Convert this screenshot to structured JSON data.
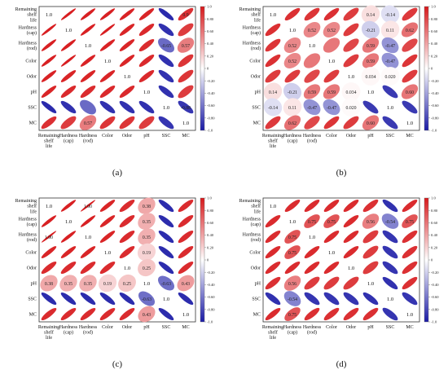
{
  "variables": [
    "Remaining shelf life",
    "Hardness (cap)",
    "Hardness (rod)",
    "Color",
    "Odor",
    "pH",
    "SSC",
    "MC"
  ],
  "row_labels": [
    [
      "Remaining",
      "shelf",
      "life"
    ],
    [
      "Hardness",
      "(cap)"
    ],
    [
      "Hardness",
      "(rod)"
    ],
    [
      "Color"
    ],
    [
      "Odor"
    ],
    [
      "pH"
    ],
    [
      "SSC"
    ],
    [
      "MC"
    ]
  ],
  "col_labels": [
    [
      "Remaining",
      "shelf",
      "life"
    ],
    [
      "Hardness",
      "(cap)"
    ],
    [
      "Hardness",
      "(rod)"
    ],
    [
      "Color"
    ],
    [
      "Odor"
    ],
    [
      "pH"
    ],
    [
      "SSC"
    ],
    [
      "MC"
    ]
  ],
  "colorbar_ticks": [
    "1.0",
    "0.80",
    "0.60",
    "0.40",
    "0.20",
    "0",
    "-0.20",
    "-0.40",
    "-0.60",
    "-0.80",
    "-1.0"
  ],
  "colors": {
    "positive": "#d7191c",
    "neutral": "#ffffff",
    "negative": "#1a1aa6",
    "frame": "#333333",
    "diag_text": "#111111"
  },
  "chart_data": [
    {
      "type": "heatmap",
      "panel_label": "(a)",
      "variables": [
        "Remaining shelf life",
        "Hardness (cap)",
        "Hardness (rod)",
        "Color",
        "Odor",
        "pH",
        "SSC",
        "MC"
      ],
      "matrix": [
        [
          1.0,
          0.98,
          0.97,
          0.97,
          0.96,
          0.95,
          -0.93,
          0.9
        ],
        [
          0.98,
          1.0,
          0.97,
          0.98,
          0.95,
          0.93,
          -0.9,
          0.85
        ],
        [
          0.97,
          0.97,
          1.0,
          0.96,
          0.95,
          0.92,
          -0.65,
          0.57
        ],
        [
          0.97,
          0.98,
          0.96,
          1.0,
          0.95,
          0.93,
          -0.9,
          0.88
        ],
        [
          0.96,
          0.95,
          0.95,
          0.95,
          1.0,
          0.93,
          -0.9,
          0.88
        ],
        [
          0.95,
          0.93,
          0.92,
          0.93,
          0.93,
          1.0,
          -0.9,
          0.85
        ],
        [
          -0.93,
          -0.9,
          -0.65,
          -0.9,
          -0.9,
          -0.9,
          1.0,
          -0.88
        ],
        [
          0.9,
          0.85,
          0.57,
          0.88,
          0.88,
          0.85,
          -0.88,
          1.0
        ]
      ],
      "value_labels": [
        [
          null,
          null,
          null,
          null,
          null,
          null,
          null,
          "0.9"
        ],
        [
          null,
          null,
          null,
          null,
          null,
          null,
          null,
          null
        ],
        [
          null,
          null,
          null,
          null,
          null,
          null,
          "-0.65",
          "0.57"
        ],
        [
          null,
          null,
          null,
          null,
          null,
          null,
          null,
          null
        ],
        [
          null,
          null,
          null,
          null,
          null,
          null,
          null,
          null
        ],
        [
          null,
          null,
          null,
          null,
          null,
          null,
          null,
          null
        ],
        [
          null,
          null,
          null,
          null,
          null,
          null,
          null,
          "-0.88"
        ],
        [
          null,
          null,
          "0.57",
          null,
          null,
          null,
          null,
          null
        ]
      ],
      "colorbar_range": [
        -1.0,
        1.0
      ]
    },
    {
      "type": "heatmap",
      "panel_label": "(b)",
      "variables": [
        "Remaining shelf life",
        "Hardness (cap)",
        "Hardness (rod)",
        "Color",
        "Odor",
        "pH",
        "SSC",
        "MC"
      ],
      "matrix": [
        [
          1.0,
          0.9,
          0.88,
          0.9,
          0.85,
          0.14,
          -0.14,
          0.86
        ],
        [
          0.9,
          1.0,
          0.52,
          0.52,
          0.85,
          -0.21,
          0.11,
          0.62
        ],
        [
          0.88,
          0.52,
          1.0,
          0.59,
          0.8,
          0.59,
          -0.47,
          0.8
        ],
        [
          0.9,
          0.52,
          0.59,
          1.0,
          0.85,
          0.59,
          -0.47,
          0.88
        ],
        [
          0.85,
          0.85,
          0.8,
          0.85,
          1.0,
          0.034,
          0.02,
          0.85
        ],
        [
          0.14,
          -0.21,
          0.59,
          0.59,
          0.034,
          1.0,
          -0.86,
          0.6
        ],
        [
          -0.14,
          0.11,
          -0.47,
          -0.47,
          0.02,
          -0.86,
          1.0,
          -0.86
        ],
        [
          0.86,
          0.62,
          0.8,
          0.88,
          0.85,
          0.6,
          -0.86,
          1.0
        ]
      ],
      "value_labels": [
        [
          null,
          null,
          null,
          null,
          null,
          "0.14",
          "-0.14",
          null
        ],
        [
          null,
          null,
          "0.52",
          "0.52",
          null,
          "-0.21",
          "0.11",
          "0.62"
        ],
        [
          null,
          "0.52",
          null,
          null,
          null,
          "0.59",
          "-0.47",
          null
        ],
        [
          null,
          "0.52",
          null,
          null,
          null,
          "0.59",
          "-0.47",
          null
        ],
        [
          null,
          null,
          null,
          null,
          null,
          "0.034",
          "0.020",
          null
        ],
        [
          "0.14",
          "-0.21",
          "0.59",
          "0.59",
          "0.034",
          null,
          null,
          "0.60"
        ],
        [
          "-0.14",
          "0.11",
          "-0.47",
          "-0.47",
          "0.020",
          null,
          null,
          null
        ],
        [
          null,
          "0.62",
          null,
          null,
          null,
          "0.60",
          null,
          null
        ]
      ],
      "colorbar_range": [
        -1.0,
        1.0
      ]
    },
    {
      "type": "heatmap",
      "panel_label": "(c)",
      "variables": [
        "Remaining shelf life",
        "Hardness (cap)",
        "Hardness (rod)",
        "Color",
        "Odor",
        "pH",
        "SSC",
        "MC"
      ],
      "matrix": [
        [
          1.0,
          0.97,
          1.0,
          0.95,
          0.92,
          0.38,
          -0.92,
          0.92
        ],
        [
          0.97,
          1.0,
          0.97,
          0.95,
          0.92,
          0.35,
          -0.92,
          0.92
        ],
        [
          1.0,
          0.97,
          1.0,
          0.95,
          0.92,
          0.35,
          -0.92,
          0.92
        ],
        [
          0.95,
          0.95,
          0.95,
          1.0,
          0.92,
          0.19,
          -0.92,
          0.92
        ],
        [
          0.92,
          0.92,
          0.92,
          0.92,
          1.0,
          0.25,
          -0.92,
          0.92
        ],
        [
          0.38,
          0.35,
          0.35,
          0.19,
          0.25,
          1.0,
          -0.63,
          0.43
        ],
        [
          -0.92,
          -0.92,
          -0.92,
          -0.92,
          -0.92,
          -0.63,
          1.0,
          -0.92
        ],
        [
          0.92,
          0.92,
          0.92,
          0.92,
          0.92,
          0.43,
          -0.92,
          1.0
        ]
      ],
      "value_labels": [
        [
          null,
          null,
          "1.00",
          null,
          null,
          "0.38",
          null,
          null
        ],
        [
          null,
          null,
          null,
          null,
          null,
          "0.35",
          null,
          null
        ],
        [
          "1.00",
          null,
          null,
          null,
          null,
          "0.35",
          null,
          null
        ],
        [
          null,
          null,
          null,
          null,
          null,
          "0.19",
          null,
          null
        ],
        [
          null,
          null,
          null,
          null,
          null,
          "0.25",
          null,
          null
        ],
        [
          "0.38",
          "0.35",
          "0.35",
          "0.19",
          "0.25",
          null,
          "-0.63",
          "0.43"
        ],
        [
          null,
          null,
          null,
          null,
          null,
          "-0.63",
          null,
          null
        ],
        [
          null,
          null,
          null,
          null,
          null,
          "0.43",
          null,
          null
        ]
      ],
      "colorbar_range": [
        -1.0,
        1.0
      ]
    },
    {
      "type": "heatmap",
      "panel_label": "(d)",
      "variables": [
        "Remaining shelf life",
        "Hardness (cap)",
        "Hardness (rod)",
        "Color",
        "Odor",
        "pH",
        "SSC",
        "MC"
      ],
      "matrix": [
        [
          1.0,
          0.92,
          0.92,
          0.92,
          0.92,
          0.9,
          -0.9,
          0.92
        ],
        [
          0.92,
          1.0,
          0.75,
          0.75,
          0.92,
          0.56,
          -0.54,
          0.75
        ],
        [
          0.92,
          0.75,
          1.0,
          0.92,
          0.92,
          0.85,
          -0.88,
          0.9
        ],
        [
          0.92,
          0.75,
          0.92,
          1.0,
          0.92,
          0.85,
          -0.88,
          0.9
        ],
        [
          0.92,
          0.92,
          0.92,
          0.92,
          1.0,
          0.85,
          -0.88,
          0.9
        ],
        [
          0.9,
          0.56,
          0.85,
          0.85,
          0.85,
          1.0,
          -0.9,
          0.9
        ],
        [
          -0.9,
          -0.54,
          -0.88,
          -0.88,
          -0.88,
          -0.9,
          1.0,
          -0.88
        ],
        [
          0.92,
          0.75,
          0.9,
          0.9,
          0.9,
          0.9,
          -0.88,
          1.0
        ]
      ],
      "value_labels": [
        [
          null,
          null,
          null,
          null,
          null,
          null,
          null,
          null
        ],
        [
          null,
          null,
          "0.75",
          "0.75",
          null,
          "0.56",
          "-0.54",
          "0.75"
        ],
        [
          null,
          "0.75",
          null,
          null,
          null,
          null,
          null,
          null
        ],
        [
          null,
          "0.75",
          null,
          null,
          null,
          null,
          null,
          null
        ],
        [
          null,
          null,
          null,
          null,
          null,
          null,
          null,
          null
        ],
        [
          null,
          "0.56",
          null,
          null,
          null,
          null,
          null,
          null
        ],
        [
          null,
          "-0.54",
          null,
          null,
          null,
          null,
          null,
          null
        ],
        [
          null,
          "0.75",
          null,
          null,
          null,
          null,
          null,
          null
        ]
      ],
      "colorbar_range": [
        -1.0,
        1.0
      ]
    }
  ]
}
